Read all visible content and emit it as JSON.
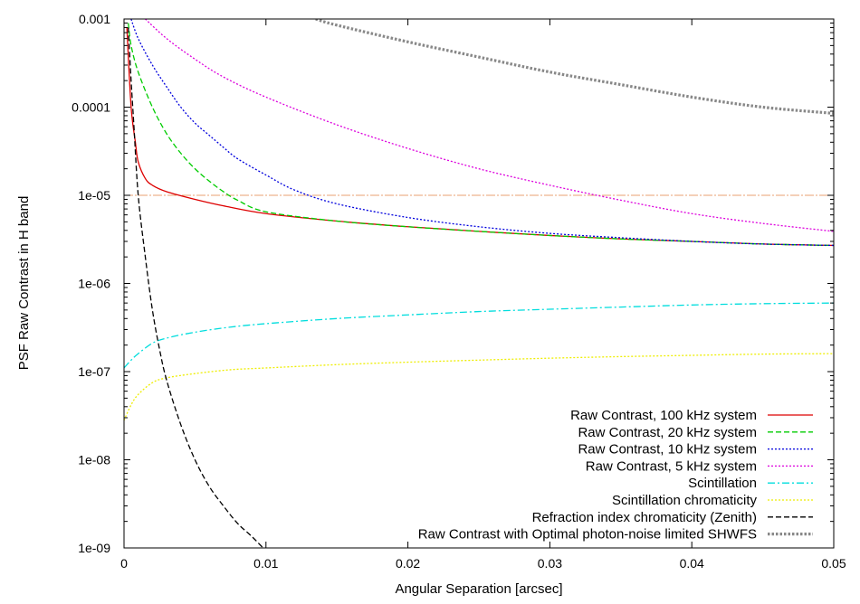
{
  "chart_data": {
    "type": "line",
    "title": "",
    "xlabel": "Angular Separation [arcsec]",
    "ylabel": "PSF Raw Contrast in H band",
    "xlim": [
      0,
      0.05
    ],
    "ylim": [
      1e-09,
      0.001
    ],
    "yscale": "log",
    "grid": false,
    "legend_position": "bottom-right",
    "x_ticks": [
      0,
      0.01,
      0.02,
      0.03,
      0.04,
      0.05
    ],
    "x_tick_labels": [
      "0",
      "0.01",
      "0.02",
      "0.03",
      "0.04",
      "0.05"
    ],
    "y_ticks": [
      0.001,
      0.0001,
      1e-05,
      1e-06,
      1e-07,
      1e-08,
      1e-09
    ],
    "y_tick_labels": [
      "0.001",
      "0.0001",
      "1e-05",
      "1e-06",
      "1e-07",
      "1e-08",
      "1e-09"
    ],
    "reference_line": {
      "y": 1e-05,
      "color": "#e8a070"
    },
    "series": [
      {
        "name": "Raw Contrast, 100 kHz system",
        "color": "#dd0000",
        "dash": "solid",
        "points": [
          [
            0.0002,
            0.0008
          ],
          [
            0.0005,
            0.0001
          ],
          [
            0.0008,
            4e-05
          ],
          [
            0.001,
            2.4e-05
          ],
          [
            0.0015,
            1.55e-05
          ],
          [
            0.002,
            1.3e-05
          ],
          [
            0.003,
            1.1e-05
          ],
          [
            0.005,
            9e-06
          ],
          [
            0.007,
            7.6e-06
          ],
          [
            0.01,
            6.2e-06
          ],
          [
            0.015,
            5.1e-06
          ],
          [
            0.02,
            4.4e-06
          ],
          [
            0.025,
            3.9e-06
          ],
          [
            0.03,
            3.5e-06
          ],
          [
            0.035,
            3.2e-06
          ],
          [
            0.04,
            3e-06
          ],
          [
            0.045,
            2.8e-06
          ],
          [
            0.05,
            2.7e-06
          ]
        ]
      },
      {
        "name": "Raw Contrast, 20 kHz system",
        "color": "#00cc00",
        "dash": "dashed",
        "points": [
          [
            0.0003,
            0.0009
          ],
          [
            0.0005,
            0.0005
          ],
          [
            0.001,
            0.00025
          ],
          [
            0.002,
            0.0001
          ],
          [
            0.003,
            5e-05
          ],
          [
            0.004,
            3e-05
          ],
          [
            0.005,
            2e-05
          ],
          [
            0.006,
            1.45e-05
          ],
          [
            0.007,
            1.1e-05
          ],
          [
            0.008,
            8.8e-06
          ],
          [
            0.01,
            6.5e-06
          ],
          [
            0.015,
            5.1e-06
          ],
          [
            0.02,
            4.4e-06
          ],
          [
            0.025,
            3.9e-06
          ],
          [
            0.03,
            3.5e-06
          ],
          [
            0.035,
            3.2e-06
          ],
          [
            0.04,
            3e-06
          ],
          [
            0.045,
            2.8e-06
          ],
          [
            0.05,
            2.7e-06
          ]
        ]
      },
      {
        "name": "Raw Contrast, 10 kHz system",
        "color": "#0000dd",
        "dash": "dotted",
        "points": [
          [
            0.0005,
            0.001
          ],
          [
            0.001,
            0.0006
          ],
          [
            0.002,
            0.0003
          ],
          [
            0.003,
            0.00017
          ],
          [
            0.004,
            0.0001
          ],
          [
            0.005,
            6.6e-05
          ],
          [
            0.006,
            4.8e-05
          ],
          [
            0.007,
            3.5e-05
          ],
          [
            0.008,
            2.6e-05
          ],
          [
            0.01,
            1.7e-05
          ],
          [
            0.012,
            1.15e-05
          ],
          [
            0.015,
            8e-06
          ],
          [
            0.02,
            5.6e-06
          ],
          [
            0.025,
            4.4e-06
          ],
          [
            0.03,
            3.7e-06
          ],
          [
            0.035,
            3.3e-06
          ],
          [
            0.04,
            3e-06
          ],
          [
            0.045,
            2.8e-06
          ],
          [
            0.05,
            2.7e-06
          ]
        ]
      },
      {
        "name": "Raw Contrast, 5 kHz system",
        "color": "#dd00dd",
        "dash": "dotted",
        "points": [
          [
            0.0015,
            0.001
          ],
          [
            0.003,
            0.0006
          ],
          [
            0.005,
            0.00035
          ],
          [
            0.007,
            0.00022
          ],
          [
            0.01,
            0.00013
          ],
          [
            0.015,
            6.3e-05
          ],
          [
            0.02,
            3.4e-05
          ],
          [
            0.025,
            2e-05
          ],
          [
            0.03,
            1.3e-05
          ],
          [
            0.035,
            8.8e-06
          ],
          [
            0.04,
            6.2e-06
          ],
          [
            0.045,
            4.8e-06
          ],
          [
            0.05,
            3.9e-06
          ]
        ]
      },
      {
        "name": "Scintillation",
        "color": "#00dddd",
        "dash": "dashdot",
        "points": [
          [
            0,
            1.1e-07
          ],
          [
            0.0005,
            1.35e-07
          ],
          [
            0.001,
            1.6e-07
          ],
          [
            0.002,
            2.1e-07
          ],
          [
            0.003,
            2.4e-07
          ],
          [
            0.005,
            2.8e-07
          ],
          [
            0.0075,
            3.2e-07
          ],
          [
            0.01,
            3.5e-07
          ],
          [
            0.015,
            4e-07
          ],
          [
            0.02,
            4.4e-07
          ],
          [
            0.025,
            4.8e-07
          ],
          [
            0.03,
            5.1e-07
          ],
          [
            0.035,
            5.4e-07
          ],
          [
            0.04,
            5.7e-07
          ],
          [
            0.045,
            5.9e-07
          ],
          [
            0.05,
            6e-07
          ]
        ]
      },
      {
        "name": "Scintillation chromaticity",
        "color": "#eeee00",
        "dash": "dotted",
        "points": [
          [
            0,
            2.8e-08
          ],
          [
            0.0005,
            4.2e-08
          ],
          [
            0.001,
            5.5e-08
          ],
          [
            0.002,
            7.5e-08
          ],
          [
            0.003,
            8.5e-08
          ],
          [
            0.005,
            9.5e-08
          ],
          [
            0.0075,
            1.05e-07
          ],
          [
            0.01,
            1.1e-07
          ],
          [
            0.015,
            1.2e-07
          ],
          [
            0.02,
            1.28e-07
          ],
          [
            0.025,
            1.35e-07
          ],
          [
            0.03,
            1.42e-07
          ],
          [
            0.035,
            1.48e-07
          ],
          [
            0.04,
            1.53e-07
          ],
          [
            0.045,
            1.58e-07
          ],
          [
            0.05,
            1.6e-07
          ]
        ]
      },
      {
        "name": "Refraction index chromaticity (Zenith)",
        "color": "#000000",
        "dash": "dashed",
        "points": [
          [
            0.0003,
            0.0008
          ],
          [
            0.0005,
            0.0002
          ],
          [
            0.0007,
            6e-05
          ],
          [
            0.001,
            1e-05
          ],
          [
            0.0015,
            2e-06
          ],
          [
            0.002,
            5e-07
          ],
          [
            0.0025,
            1.8e-07
          ],
          [
            0.003,
            8e-08
          ],
          [
            0.004,
            2.5e-08
          ],
          [
            0.005,
            1e-08
          ],
          [
            0.006,
            5e-09
          ],
          [
            0.007,
            3e-09
          ],
          [
            0.008,
            1.9e-09
          ],
          [
            0.009,
            1.35e-09
          ],
          [
            0.0098,
            1e-09
          ]
        ]
      },
      {
        "name": "Raw Contrast with Optimal photon-noise limited SHWFS",
        "color": "#888888",
        "dash": "dotted-thick",
        "points": [
          [
            0.0135,
            0.001
          ],
          [
            0.015,
            0.00085
          ],
          [
            0.02,
            0.00055
          ],
          [
            0.025,
            0.00037
          ],
          [
            0.03,
            0.00025
          ],
          [
            0.035,
            0.00018
          ],
          [
            0.04,
            0.00013
          ],
          [
            0.045,
            0.0001
          ],
          [
            0.05,
            8.5e-05
          ]
        ]
      }
    ]
  }
}
